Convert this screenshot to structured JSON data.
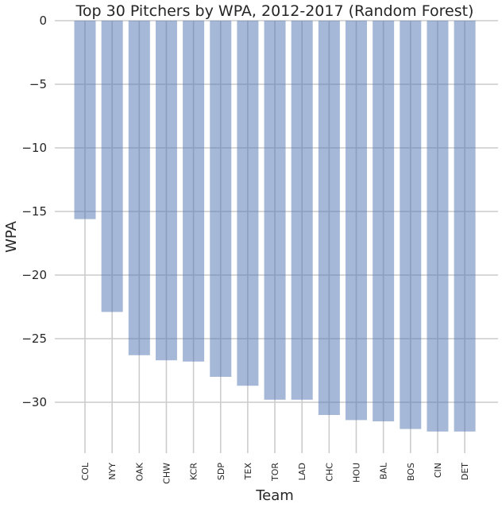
{
  "chart_data": {
    "type": "bar",
    "title": "Top 30 Pitchers by WPA, 2012-2017 (Random Forest)",
    "xlabel": "Team",
    "ylabel": "WPA",
    "categories": [
      "COL",
      "NYY",
      "OAK",
      "CHW",
      "KCR",
      "SDP",
      "TEX",
      "TOR",
      "LAD",
      "CHC",
      "HOU",
      "BAL",
      "BOS",
      "CIN",
      "DET"
    ],
    "values": [
      -15.6,
      -22.9,
      -26.3,
      -26.7,
      -26.8,
      -28.0,
      -28.7,
      -29.8,
      -29.8,
      -31.0,
      -31.4,
      -31.5,
      -32.1,
      -32.3,
      -32.3
    ],
    "ylim": [
      -34,
      0
    ],
    "yticks": [
      0,
      -5,
      -10,
      -15,
      -20,
      -25,
      -30
    ],
    "grid": true,
    "bar_color": "#4c72b0",
    "grid_color": "#cccccc"
  }
}
